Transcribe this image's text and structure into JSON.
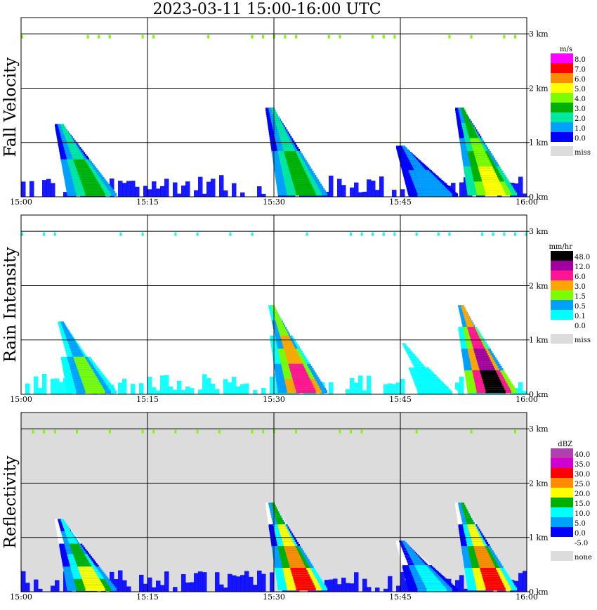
{
  "title": "2023-03-11   15:00-16:00 UTC",
  "chart_data": [
    {
      "type": "heatmap",
      "ylabel": "Fall Velocity",
      "x_ticks": [
        "15:00",
        "15:15",
        "15:30",
        "15:45",
        "16:00"
      ],
      "y_ticks": [
        "0 km",
        "1 km",
        "2 km",
        "3 km"
      ],
      "ylim": [
        0,
        3.3
      ],
      "legend": {
        "unit": "m/s",
        "labels": [
          "8.0",
          "7.0",
          "6.0",
          "5.0",
          "4.0",
          "3.0",
          "2.0",
          "1.0",
          "0.0",
          "miss"
        ],
        "colors": [
          "#ff00ff",
          "#ff0000",
          "#ff8c00",
          "#ffff00",
          "#7cfc00",
          "#00b000",
          "#00e8a0",
          "#00a0ff",
          "#0000ff",
          "#dcdcdc"
        ]
      },
      "background": "#ffffff",
      "blobs": [
        {
          "x": 4.5,
          "h": 1.3,
          "dir": 1,
          "core": 2
        },
        {
          "x": 29.5,
          "h": 1.6,
          "dir": 1,
          "core": 2
        },
        {
          "x": 45,
          "h": 0.9,
          "dir": 1,
          "core": 1
        },
        {
          "x": 52,
          "h": 1.6,
          "dir": 1,
          "core": 3
        }
      ]
    },
    {
      "type": "heatmap",
      "ylabel": "Rain Intensity",
      "x_ticks": [
        "15:00",
        "15:15",
        "15:30",
        "15:45",
        "16:00"
      ],
      "y_ticks": [
        "0 km",
        "1 km",
        "2 km",
        "3 km"
      ],
      "ylim": [
        0,
        3.3
      ],
      "legend": {
        "unit": "mm/hr",
        "labels": [
          "48.0",
          "12.0",
          "6.0",
          "3.0",
          "1.5",
          "0.5",
          "0.1",
          "0.0",
          "miss"
        ],
        "colors": [
          "#000000",
          "#a000a0",
          "#ff1493",
          "#ffa500",
          "#7cfc00",
          "#00a0ff",
          "#00ffff",
          "#ffffff",
          "#dcdcdc"
        ]
      },
      "background": "#ffffff",
      "blobs": [
        {
          "x": 4.5,
          "h": 1.3,
          "dir": 1,
          "core": 2
        },
        {
          "x": 29.5,
          "h": 1.6,
          "dir": 1,
          "core": 3
        },
        {
          "x": 45,
          "h": 0.9,
          "dir": 1,
          "core": 1
        },
        {
          "x": 52,
          "h": 1.6,
          "dir": 1,
          "core": 4
        }
      ]
    },
    {
      "type": "heatmap",
      "ylabel": "Reflectivity",
      "x_ticks": [
        "15:00",
        "15:15",
        "15:30",
        "15:45",
        "16:00"
      ],
      "y_ticks": [
        "0 km",
        "1 km",
        "2 km",
        "3 km"
      ],
      "ylim": [
        0,
        3.3
      ],
      "legend": {
        "unit": "dBZ",
        "labels": [
          "40.0",
          "35.0",
          "30.0",
          "25.0",
          "20.0",
          "15.0",
          "10.0",
          "5.0",
          "0.0",
          "-5.0",
          "none"
        ],
        "colors": [
          "#b040b0",
          "#d000d0",
          "#ff0000",
          "#ff8c00",
          "#ffff00",
          "#00b000",
          "#00ffff",
          "#00a0ff",
          "#0000ff",
          "#ffffff",
          "#dcdcdc"
        ]
      },
      "background": "#dcdcdc",
      "blobs": [
        {
          "x": 4.5,
          "h": 1.3,
          "dir": 1,
          "core": 3
        },
        {
          "x": 29.5,
          "h": 1.6,
          "dir": 1,
          "core": 4
        },
        {
          "x": 45,
          "h": 0.9,
          "dir": 1,
          "core": 2
        },
        {
          "x": 52,
          "h": 1.6,
          "dir": 1,
          "core": 4
        }
      ]
    }
  ]
}
